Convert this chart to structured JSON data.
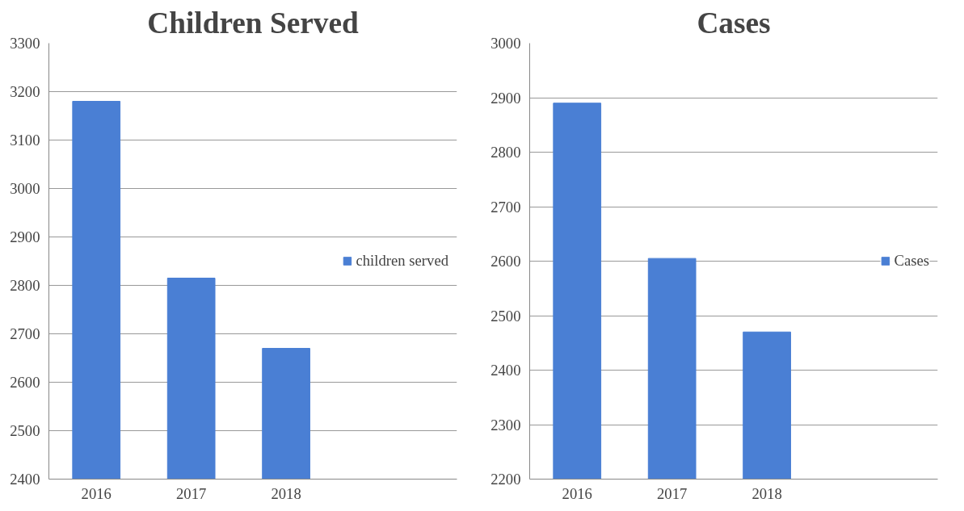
{
  "chart_data": [
    {
      "type": "bar",
      "title": "Children Served",
      "categories": [
        "2016",
        "2017",
        "2018"
      ],
      "series": [
        {
          "name": "children served",
          "color": "#4a7fd4",
          "values": [
            3180,
            2815,
            2670
          ]
        }
      ],
      "ylim": [
        2400,
        3300
      ],
      "yticks": [
        2400,
        2500,
        2600,
        2700,
        2800,
        2900,
        3000,
        3100,
        3200,
        3300
      ],
      "grid": "y",
      "legend": "right"
    },
    {
      "type": "bar",
      "title": "Cases",
      "categories": [
        "2016",
        "2017",
        "2018"
      ],
      "series": [
        {
          "name": "Cases",
          "color": "#4a7fd4",
          "values": [
            2890,
            2605,
            2470
          ]
        }
      ],
      "ylim": [
        2200,
        3000
      ],
      "yticks": [
        2200,
        2300,
        2400,
        2500,
        2600,
        2700,
        2800,
        2900,
        3000
      ],
      "grid": "y",
      "legend": "right"
    }
  ]
}
